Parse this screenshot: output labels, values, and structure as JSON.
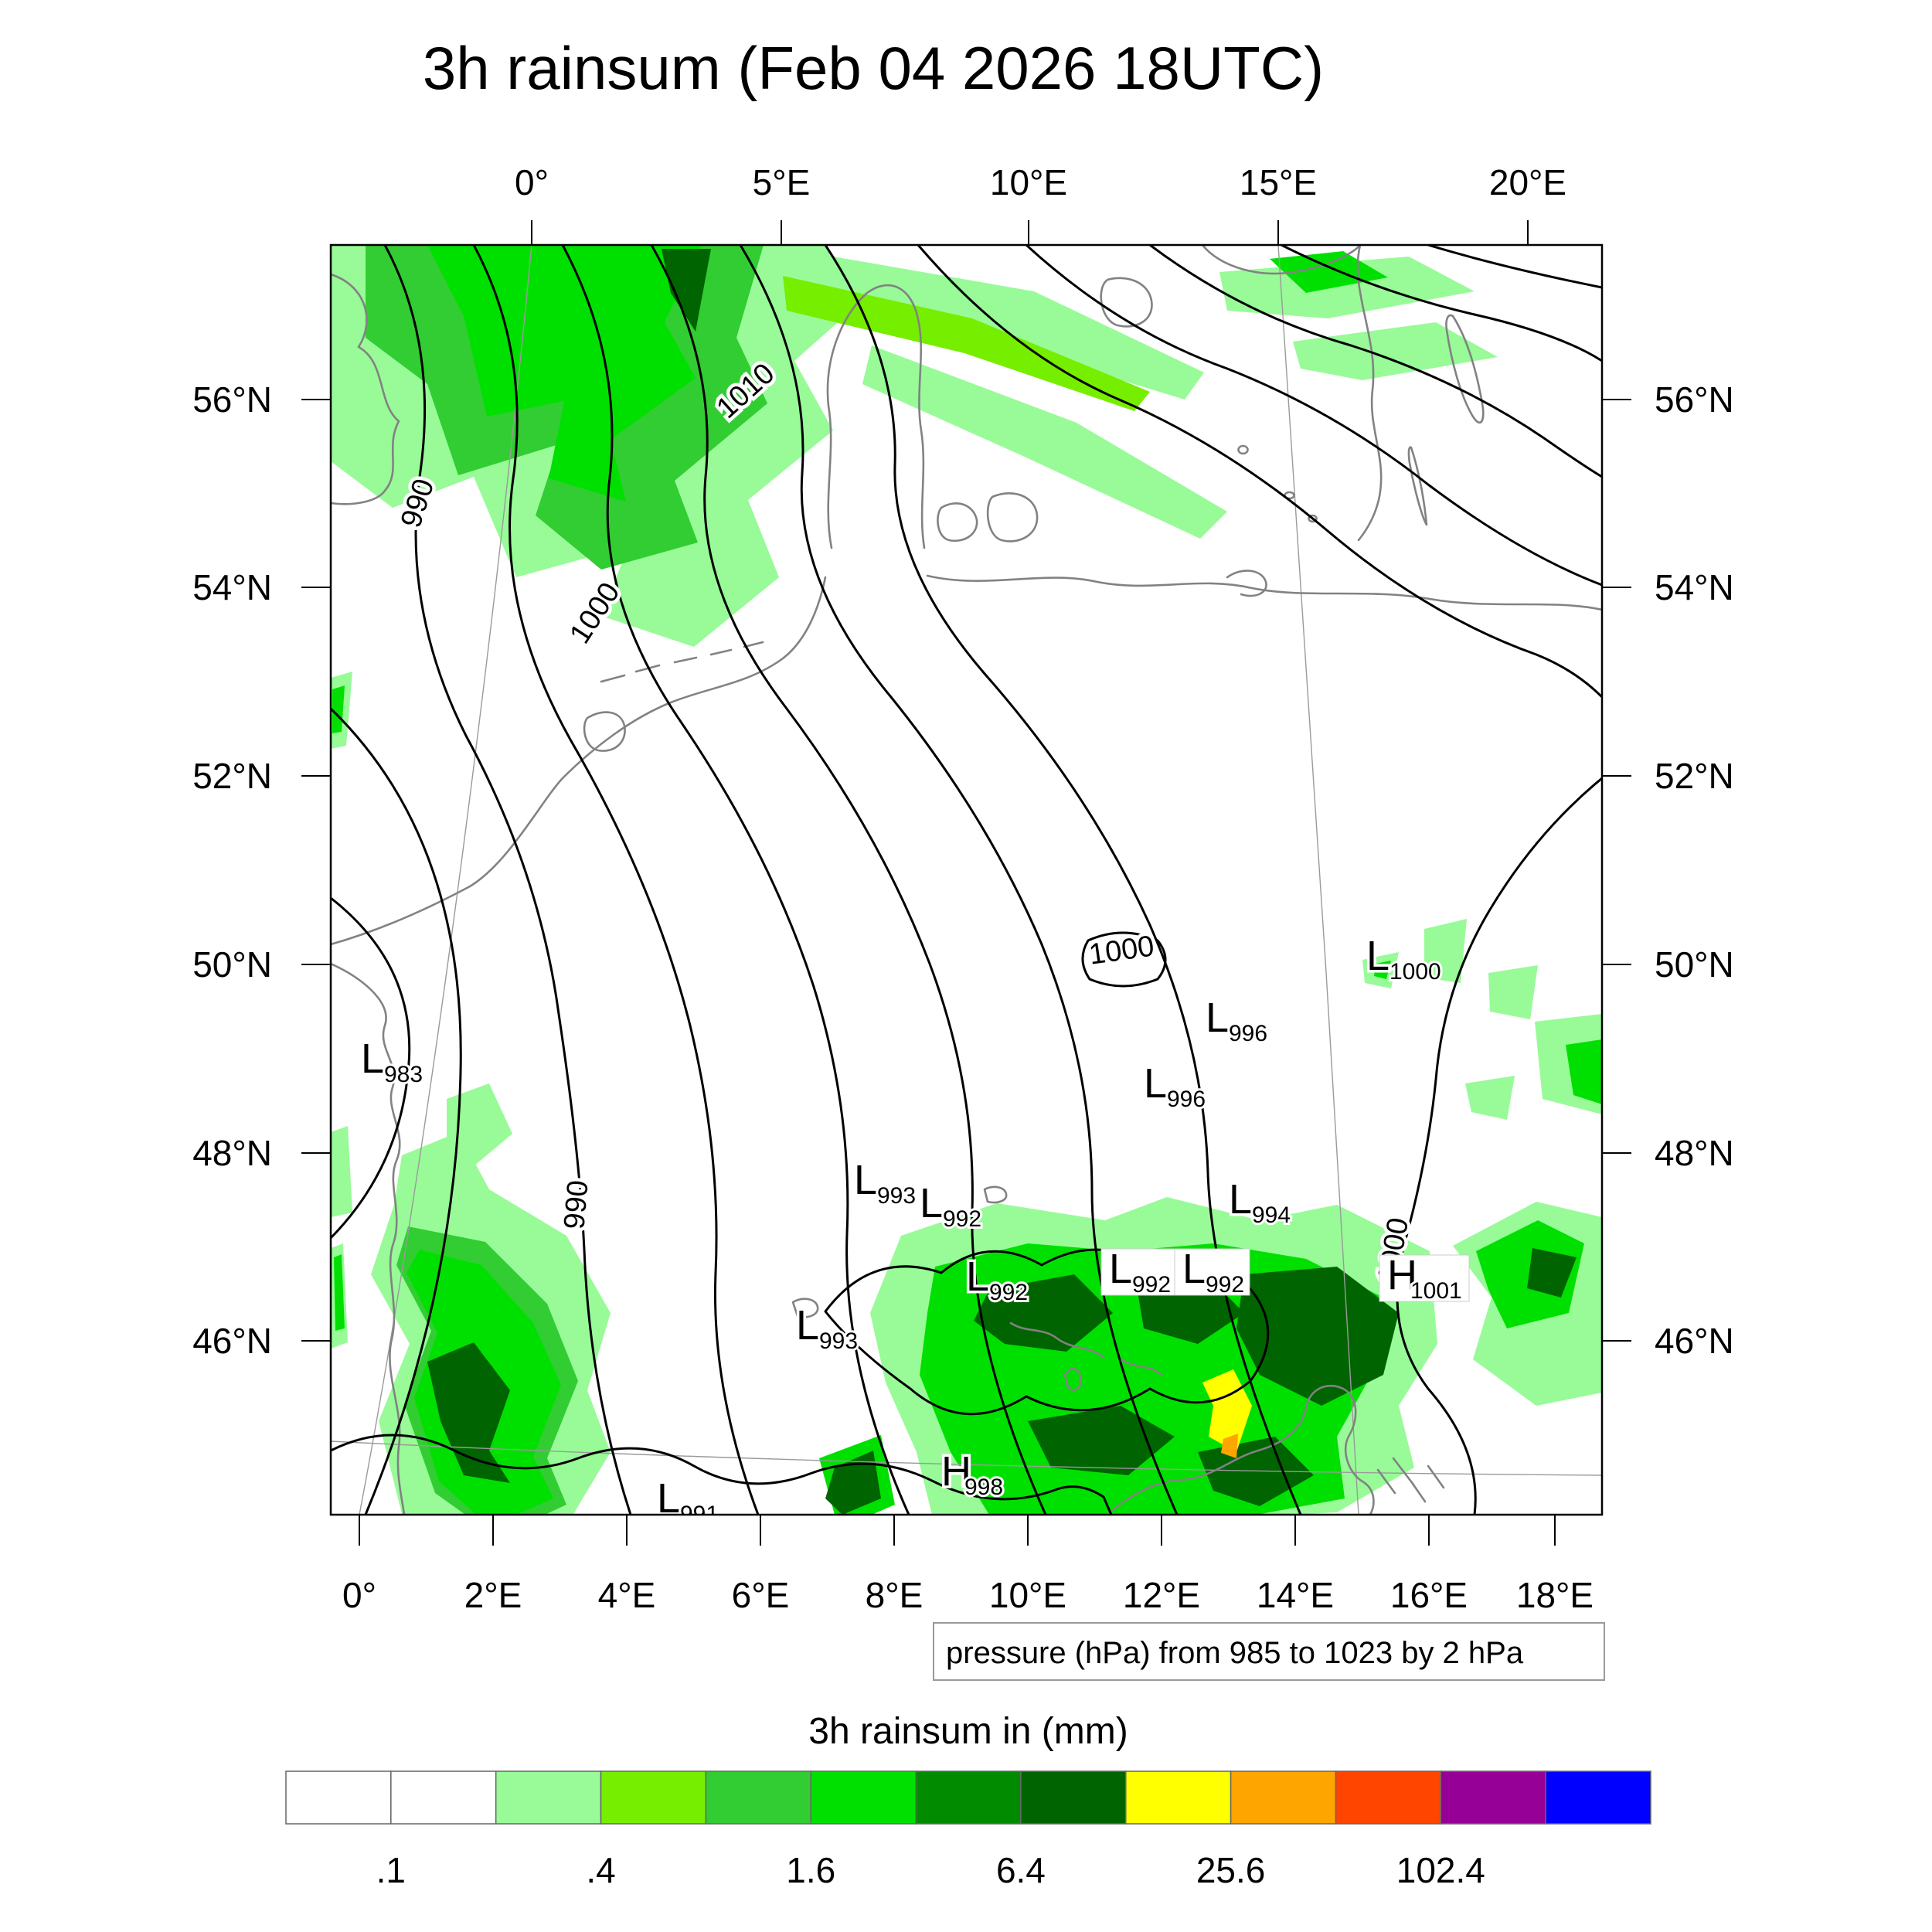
{
  "title": "3h rainsum (Feb 04 2026 18UTC)",
  "axes": {
    "top_labels": [
      "0°",
      "5°E",
      "10°E",
      "15°E",
      "20°E"
    ],
    "bottom_labels": [
      "0°",
      "2°E",
      "4°E",
      "6°E",
      "8°E",
      "10°E",
      "12°E",
      "14°E",
      "16°E",
      "18°E"
    ],
    "left_labels": [
      "56°N",
      "54°N",
      "52°N",
      "50°N",
      "48°N",
      "46°N"
    ],
    "right_labels": [
      "56°N",
      "54°N",
      "52°N",
      "50°N",
      "48°N",
      "46°N"
    ]
  },
  "pressure_note": "pressure (hPa) from 985 to 1023 by 2 hPa",
  "colorbar": {
    "title": "3h rainsum in (mm)",
    "tick_labels": [
      ".1",
      ".4",
      "1.6",
      "6.4",
      "25.6",
      "102.4"
    ],
    "cell_colors": [
      "#FFFFFF",
      "#FFFFFF",
      "#98FB98",
      "#76EE00",
      "#32CD32",
      "#00E000",
      "#008B00",
      "#006400",
      "#FFFF00",
      "#FFA500",
      "#FF4500",
      "#960096",
      "#0000FF"
    ]
  },
  "chart_data": {
    "type": "heatmap",
    "subtype": "weather-map: shaded 3h rain accumulation with sea-level pressure contours over western/central Europe",
    "title": "3h rainsum (Feb 04 2026 18UTC)",
    "valid_time": "Feb 04 2026 18UTC",
    "lon_ticks_top_deg": [
      0,
      5,
      10,
      15,
      20
    ],
    "lon_ticks_bottom_deg": [
      0,
      2,
      4,
      6,
      8,
      10,
      12,
      14,
      16,
      18
    ],
    "lat_ticks_deg_n": [
      56,
      54,
      52,
      50,
      48,
      46
    ],
    "pressure_contours_hpa": {
      "min": 985,
      "max": 1023,
      "interval": 2
    },
    "rain_scale_mm_labeled_bounds": [
      0.1,
      0.4,
      1.6,
      6.4,
      25.6,
      102.4
    ],
    "pressure_centers": [
      {
        "letter": "L",
        "value": "983",
        "px": [
          39,
          1071
        ],
        "boxed": false
      },
      {
        "letter": "L",
        "value": "1000",
        "px": [
          1340,
          938
        ],
        "boxed": false
      },
      {
        "letter": "L",
        "value": "996",
        "px": [
          1132,
          1018
        ],
        "boxed": false
      },
      {
        "letter": "L",
        "value": "996",
        "px": [
          1052,
          1103
        ],
        "boxed": false
      },
      {
        "letter": "L",
        "value": "994",
        "px": [
          1162,
          1253
        ],
        "boxed": false
      },
      {
        "letter": "L",
        "value": "993",
        "px": [
          677,
          1228
        ],
        "boxed": false
      },
      {
        "letter": "L",
        "value": "992",
        "px": [
          762,
          1258
        ],
        "boxed": false
      },
      {
        "letter": "L",
        "value": "992",
        "px": [
          822,
          1353
        ],
        "boxed": false
      },
      {
        "letter": "L",
        "value": "992",
        "px": [
          1007,
          1343
        ],
        "boxed": true
      },
      {
        "letter": "L",
        "value": "992",
        "px": [
          1102,
          1343
        ],
        "boxed": true
      },
      {
        "letter": "H",
        "value": "1001",
        "px": [
          1367,
          1351
        ],
        "boxed": true
      },
      {
        "letter": "L",
        "value": "993",
        "px": [
          602,
          1416
        ],
        "boxed": false
      },
      {
        "letter": "L",
        "value": "991",
        "px": [
          422,
          1640
        ],
        "boxed": false
      },
      {
        "letter": "H",
        "value": "998",
        "px": [
          790,
          1605
        ],
        "boxed": false
      }
    ],
    "isobar_labels": [
      {
        "text": "990",
        "px": [
          124,
          338
        ],
        "rot": -72
      },
      {
        "text": "1010",
        "px": [
          545,
          198
        ],
        "rot": -42
      },
      {
        "text": "1000",
        "px": [
          352,
          483
        ],
        "rot": -57
      },
      {
        "text": "990",
        "px": [
          330,
          1243
        ],
        "rot": -85
      },
      {
        "text": "1000",
        "px": [
          1025,
          925
        ],
        "rot": -8
      },
      {
        "text": "1000",
        "px": [
          1387,
          1303
        ],
        "rot": -80
      }
    ]
  }
}
